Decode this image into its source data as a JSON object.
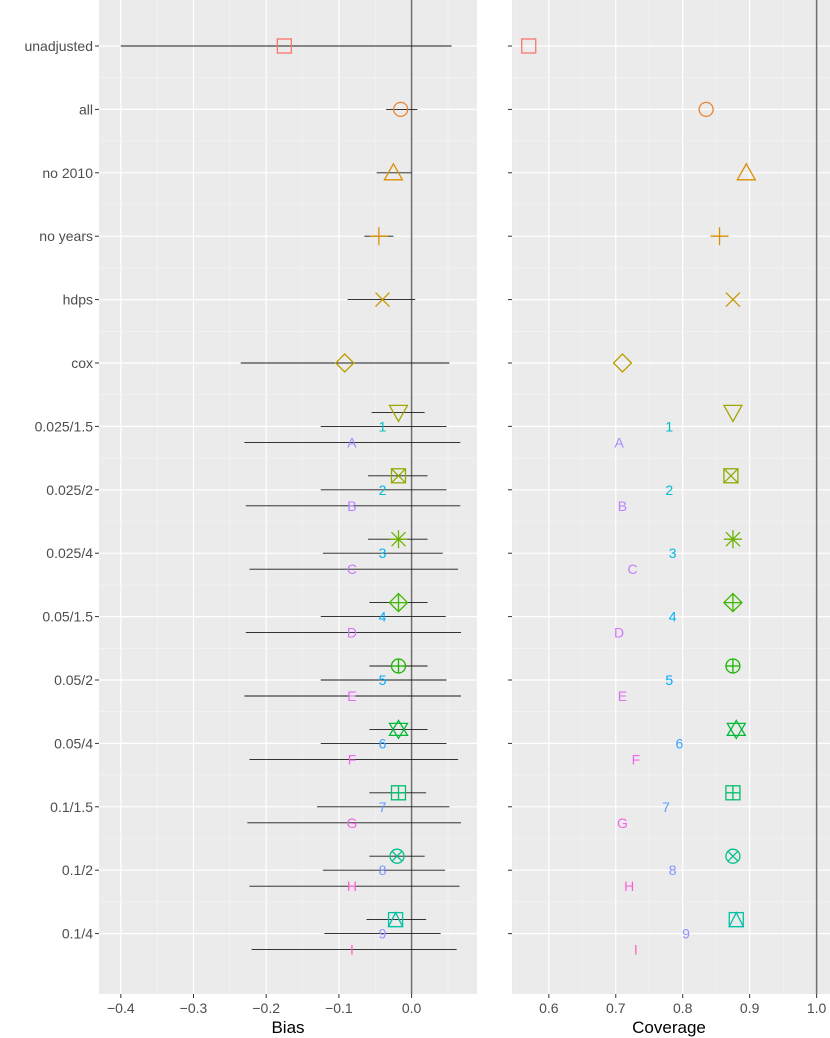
{
  "chart_data": {
    "type": "forest",
    "rows": [
      "unadjusted",
      "all",
      "no 2010",
      "no years",
      "hdps",
      "cox",
      "0.025/1.5",
      "0.025/2",
      "0.025/4",
      "0.05/1.5",
      "0.05/2",
      "0.05/4",
      "0.1/1.5",
      "0.1/2",
      "0.1/4"
    ],
    "panels": [
      {
        "name": "bias",
        "xlabel": "Bias",
        "xlim": [
          -0.43,
          0.09
        ],
        "ticks": [
          -0.4,
          -0.3,
          -0.2,
          -0.1,
          0.0
        ],
        "tick_labels": [
          "−0.4",
          "−0.3",
          "−0.2",
          "−0.1",
          "0.0"
        ],
        "reference_line": 0.0
      },
      {
        "name": "coverage",
        "xlabel": "Coverage",
        "xlim": [
          0.545,
          1.02
        ],
        "ticks": [
          0.6,
          0.7,
          0.8,
          0.9,
          1.0
        ],
        "tick_labels": [
          "0.6",
          "0.7",
          "0.8",
          "0.9",
          "1.0"
        ],
        "reference_line": 1.0
      }
    ],
    "main_series": [
      {
        "row": "unadjusted",
        "bias": -0.175,
        "lo": -0.4,
        "hi": 0.055,
        "coverage": 0.57,
        "symbol": "square",
        "color": "#F8766D"
      },
      {
        "row": "all",
        "bias": -0.015,
        "lo": -0.035,
        "hi": 0.008,
        "coverage": 0.835,
        "symbol": "circle",
        "color": "#EA8331"
      },
      {
        "row": "no 2010",
        "bias": -0.025,
        "lo": -0.048,
        "hi": 0.0,
        "coverage": 0.895,
        "symbol": "triangle",
        "color": "#DB8E00"
      },
      {
        "row": "no years",
        "bias": -0.045,
        "lo": -0.065,
        "hi": -0.025,
        "coverage": 0.855,
        "symbol": "plus",
        "color": "#D89000"
      },
      {
        "row": "hdps",
        "bias": -0.04,
        "lo": -0.088,
        "hi": 0.005,
        "coverage": 0.875,
        "symbol": "cross",
        "color": "#C99800"
      },
      {
        "row": "cox",
        "bias": -0.092,
        "lo": -0.235,
        "hi": 0.052,
        "coverage": 0.71,
        "symbol": "diamond",
        "color": "#BB9D00"
      },
      {
        "row": "0.025/1.5",
        "bias": -0.018,
        "lo": -0.055,
        "hi": 0.018,
        "coverage": 0.875,
        "symbol": "triangle-down",
        "color": "#A3A500"
      },
      {
        "row": "0.025/2",
        "bias": -0.018,
        "lo": -0.06,
        "hi": 0.022,
        "coverage": 0.872,
        "symbol": "square-x",
        "color": "#8FAA00"
      },
      {
        "row": "0.025/4",
        "bias": -0.018,
        "lo": -0.06,
        "hi": 0.022,
        "coverage": 0.875,
        "symbol": "asterisk",
        "color": "#6BB100"
      },
      {
        "row": "0.05/1.5",
        "bias": -0.018,
        "lo": -0.058,
        "hi": 0.022,
        "coverage": 0.875,
        "symbol": "diamond-plus",
        "color": "#3DB700"
      },
      {
        "row": "0.05/2",
        "bias": -0.018,
        "lo": -0.058,
        "hi": 0.022,
        "coverage": 0.875,
        "symbol": "circle-plus",
        "color": "#1AB400"
      },
      {
        "row": "0.05/4",
        "bias": -0.018,
        "lo": -0.058,
        "hi": 0.022,
        "coverage": 0.88,
        "symbol": "star-of-david",
        "color": "#00BA38"
      },
      {
        "row": "0.1/1.5",
        "bias": -0.018,
        "lo": -0.058,
        "hi": 0.02,
        "coverage": 0.875,
        "symbol": "square-plus",
        "color": "#00BE6C"
      },
      {
        "row": "0.1/2",
        "bias": -0.02,
        "lo": -0.058,
        "hi": 0.018,
        "coverage": 0.875,
        "symbol": "circle-x",
        "color": "#00C08B"
      },
      {
        "row": "0.1/4",
        "bias": -0.022,
        "lo": -0.062,
        "hi": 0.02,
        "coverage": 0.88,
        "symbol": "square-triangle",
        "color": "#00C1A3"
      }
    ],
    "number_series": [
      {
        "label": "1",
        "row": "0.025/1.5",
        "bias": -0.04,
        "lo": -0.125,
        "hi": 0.048,
        "coverage": 0.78,
        "color": "#00BFC4"
      },
      {
        "label": "2",
        "row": "0.025/2",
        "bias": -0.04,
        "lo": -0.125,
        "hi": 0.048,
        "coverage": 0.78,
        "color": "#00BCD8"
      },
      {
        "label": "3",
        "row": "0.025/4",
        "bias": -0.04,
        "lo": -0.122,
        "hi": 0.043,
        "coverage": 0.785,
        "color": "#00B8E7"
      },
      {
        "label": "4",
        "row": "0.05/1.5",
        "bias": -0.04,
        "lo": -0.125,
        "hi": 0.047,
        "coverage": 0.785,
        "color": "#00B0F6"
      },
      {
        "label": "5",
        "row": "0.05/2",
        "bias": -0.04,
        "lo": -0.125,
        "hi": 0.048,
        "coverage": 0.78,
        "color": "#00A9FF"
      },
      {
        "label": "6",
        "row": "0.05/4",
        "bias": -0.04,
        "lo": -0.125,
        "hi": 0.048,
        "coverage": 0.795,
        "color": "#35A2FF"
      },
      {
        "label": "7",
        "row": "0.1/1.5",
        "bias": -0.04,
        "lo": -0.13,
        "hi": 0.052,
        "coverage": 0.775,
        "color": "#619CFF"
      },
      {
        "label": "8",
        "row": "0.1/2",
        "bias": -0.04,
        "lo": -0.122,
        "hi": 0.046,
        "coverage": 0.785,
        "color": "#7F96FF"
      },
      {
        "label": "9",
        "row": "0.1/4",
        "bias": -0.04,
        "lo": -0.12,
        "hi": 0.04,
        "coverage": 0.805,
        "color": "#9590FF"
      }
    ],
    "letter_series": [
      {
        "label": "A",
        "row": "0.025/1.5",
        "bias": -0.082,
        "lo": -0.23,
        "hi": 0.067,
        "coverage": 0.705,
        "color": "#A58AFF"
      },
      {
        "label": "B",
        "row": "0.025/2",
        "bias": -0.082,
        "lo": -0.228,
        "hi": 0.067,
        "coverage": 0.71,
        "color": "#B983FF"
      },
      {
        "label": "C",
        "row": "0.025/4",
        "bias": -0.082,
        "lo": -0.223,
        "hi": 0.064,
        "coverage": 0.725,
        "color": "#C77CFF"
      },
      {
        "label": "D",
        "row": "0.05/1.5",
        "bias": -0.082,
        "lo": -0.228,
        "hi": 0.068,
        "coverage": 0.705,
        "color": "#D575FE"
      },
      {
        "label": "E",
        "row": "0.05/2",
        "bias": -0.082,
        "lo": -0.23,
        "hi": 0.068,
        "coverage": 0.71,
        "color": "#E36EF6"
      },
      {
        "label": "F",
        "row": "0.05/4",
        "bias": -0.082,
        "lo": -0.223,
        "hi": 0.064,
        "coverage": 0.73,
        "color": "#ED68ED"
      },
      {
        "label": "G",
        "row": "0.1/1.5",
        "bias": -0.082,
        "lo": -0.226,
        "hi": 0.068,
        "coverage": 0.71,
        "color": "#F564E3"
      },
      {
        "label": "H",
        "row": "0.1/2",
        "bias": -0.082,
        "lo": -0.223,
        "hi": 0.066,
        "coverage": 0.72,
        "color": "#FB61D7"
      },
      {
        "label": "I",
        "row": "0.1/4",
        "bias": -0.082,
        "lo": -0.22,
        "hi": 0.062,
        "coverage": 0.73,
        "color": "#FF62BC"
      }
    ]
  }
}
